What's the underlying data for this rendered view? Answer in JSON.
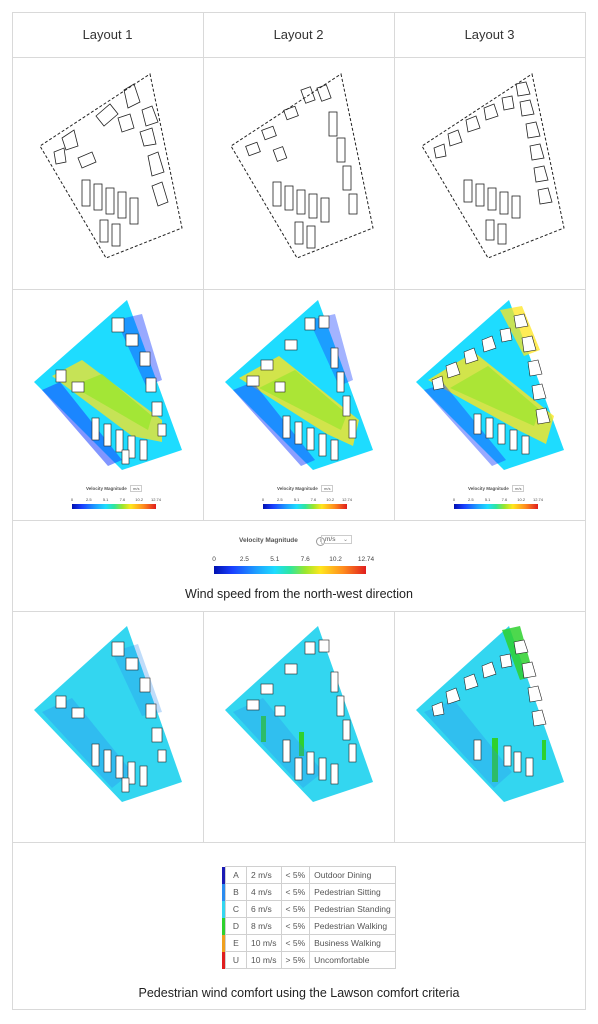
{
  "layouts": [
    {
      "label": "Layout 1"
    },
    {
      "label": "Layout 2"
    },
    {
      "label": "Layout 3"
    }
  ],
  "velocity_legend": {
    "title": "Velocity Magnitude",
    "unit": "m/s",
    "ticks": [
      "0",
      "2.5",
      "5.1",
      "7.6",
      "10.2",
      "12.74"
    ],
    "min": 0,
    "max": 12.74
  },
  "mini_legend": {
    "title": "Velocity Magnitude",
    "unit": "m/s",
    "ticks": [
      "0",
      "2.5",
      "5.1",
      "7.6",
      "10.2",
      "12.74"
    ]
  },
  "wind_caption": "Wind speed from the north-west direction",
  "comfort_caption": "Pedestrian wind comfort using the Lawson comfort criteria",
  "lawson_criteria": [
    {
      "code": "A",
      "speed": "2 m/s",
      "threshold": "< 5%",
      "activity": "Outdoor Dining",
      "color": "#1a1ab4"
    },
    {
      "code": "B",
      "speed": "4 m/s",
      "threshold": "< 5%",
      "activity": "Pedestrian Sitting",
      "color": "#2a8cf0"
    },
    {
      "code": "C",
      "speed": "6 m/s",
      "threshold": "< 5%",
      "activity": "Pedestrian Standing",
      "color": "#33d6f0"
    },
    {
      "code": "D",
      "speed": "8 m/s",
      "threshold": "< 5%",
      "activity": "Pedestrian Walking",
      "color": "#2ed12e"
    },
    {
      "code": "E",
      "speed": "10 m/s",
      "threshold": "< 5%",
      "activity": "Business Walking",
      "color": "#f0a01e"
    },
    {
      "code": "U",
      "speed": "10 m/s",
      "threshold": "> 5%",
      "activity": "Uncomfortable",
      "color": "#e01e1e"
    }
  ]
}
